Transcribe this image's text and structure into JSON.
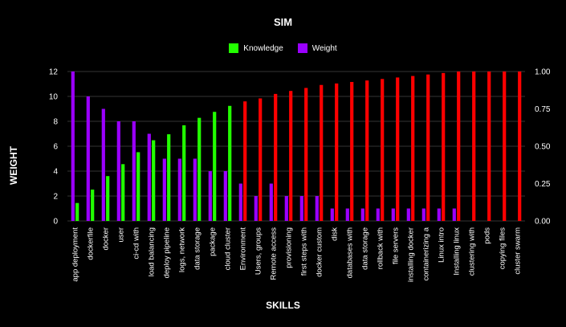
{
  "colors": {
    "background": "#000000",
    "knowledge": "#22ff00",
    "weight": "#9b00ff",
    "knowledge_high": "#ff0000",
    "grid": "#333333",
    "text": "#ffffff"
  },
  "chart_data": {
    "type": "bar",
    "title": "SIM",
    "xlabel": "SKILLS",
    "ylabel": "WEIGHT",
    "legend_position": "top-center",
    "grid": true,
    "categories": [
      "app deployment",
      "dockerfile",
      "docker",
      "user",
      "ci-cd with",
      "load balancing",
      "deploy pipeline",
      "logs, network",
      "data storage",
      "package",
      "cloud cluster",
      "Environment",
      "Users, groups",
      "Remote access",
      "provisioning",
      "first steps with",
      "docker custom",
      "disk",
      "databases with",
      "data storage",
      "rollback with",
      "file servers",
      "installing docker",
      "containerizing a",
      "Linux intro",
      "Installing linux",
      "clustering with",
      "pods",
      "copying files",
      "cluster swarm"
    ],
    "left_axis": {
      "ylim": [
        0,
        12
      ],
      "ticks": [
        "0",
        "2",
        "4",
        "6",
        "8",
        "10",
        "12"
      ]
    },
    "right_axis": {
      "ylim": [
        0,
        1
      ],
      "ticks": [
        "0.00",
        "0.25",
        "0.50",
        "0.75",
        "1.00"
      ]
    },
    "series": [
      {
        "name": "Weight",
        "axis": "left",
        "values": [
          12,
          10,
          9,
          8,
          8,
          7,
          5,
          5,
          5,
          4,
          4,
          3,
          2,
          3,
          2,
          2,
          2,
          1,
          1,
          1,
          1,
          1,
          1,
          1,
          1,
          1,
          0,
          0,
          0,
          0
        ]
      },
      {
        "name": "Knowledge",
        "axis": "right",
        "values": [
          0.12,
          0.21,
          0.3,
          0.38,
          0.46,
          0.54,
          0.58,
          0.64,
          0.69,
          0.73,
          0.77,
          0.8,
          0.82,
          0.85,
          0.87,
          0.89,
          0.91,
          0.92,
          0.93,
          0.94,
          0.95,
          0.96,
          0.97,
          0.98,
          0.99,
          1.0,
          1.0,
          1.0,
          1.0,
          1.0
        ]
      }
    ]
  }
}
